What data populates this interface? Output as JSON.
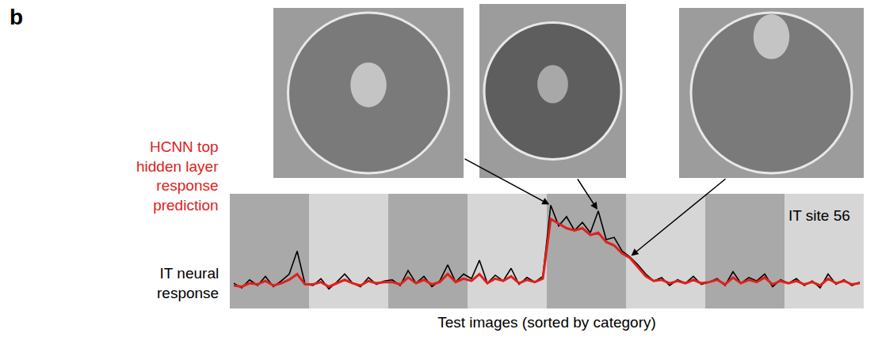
{
  "chart_data": {
    "type": "line",
    "panel": "b",
    "xlabel": "Test images (sorted by category)",
    "annotations": [
      "IT site 56"
    ],
    "tick_labels": false,
    "grid": false,
    "x": [
      0,
      1,
      2,
      3,
      4,
      5,
      6,
      7,
      8,
      9,
      10,
      11,
      12,
      13,
      14,
      15,
      16,
      17,
      18,
      19,
      20,
      21,
      22,
      23,
      24,
      25,
      26,
      27,
      28,
      29,
      30,
      31,
      32,
      33,
      34,
      35,
      36,
      37,
      38,
      39,
      40,
      41,
      42,
      43,
      44,
      45,
      46,
      47,
      48,
      49,
      50,
      51,
      52,
      53,
      54,
      55,
      56,
      57,
      58,
      59,
      60,
      61,
      62,
      63,
      64,
      65,
      66,
      67,
      68,
      69,
      70,
      71,
      72,
      73,
      74,
      75,
      76,
      77,
      78,
      79
    ],
    "xlim": [
      -0.5,
      79.5
    ],
    "ylim": [
      0,
      1
    ],
    "category_bounds": [
      -0.5,
      9.5,
      19.5,
      29.5,
      39.5,
      49.5,
      59.5,
      69.5,
      79.5
    ],
    "arrow_targets": [
      40,
      46,
      50
    ],
    "series": [
      {
        "name": "IT neural response",
        "color": "#000000",
        "values": [
          0.22,
          0.18,
          0.25,
          0.2,
          0.28,
          0.19,
          0.24,
          0.3,
          0.5,
          0.21,
          0.2,
          0.26,
          0.17,
          0.23,
          0.3,
          0.22,
          0.19,
          0.27,
          0.21,
          0.24,
          0.25,
          0.2,
          0.33,
          0.22,
          0.28,
          0.19,
          0.24,
          0.38,
          0.23,
          0.3,
          0.26,
          0.42,
          0.22,
          0.29,
          0.24,
          0.35,
          0.21,
          0.27,
          0.23,
          0.28,
          0.9,
          0.72,
          0.8,
          0.68,
          0.75,
          0.66,
          0.85,
          0.6,
          0.62,
          0.5,
          0.45,
          0.38,
          0.3,
          0.24,
          0.27,
          0.2,
          0.25,
          0.22,
          0.28,
          0.21,
          0.23,
          0.26,
          0.2,
          0.32,
          0.22,
          0.27,
          0.24,
          0.3,
          0.19,
          0.25,
          0.22,
          0.26,
          0.2,
          0.24,
          0.18,
          0.3,
          0.21,
          0.25,
          0.2,
          0.23
        ]
      },
      {
        "name": "HCNN top hidden layer response prediction",
        "color": "#e0201b",
        "values": [
          0.2,
          0.19,
          0.22,
          0.21,
          0.24,
          0.2,
          0.22,
          0.25,
          0.3,
          0.21,
          0.21,
          0.23,
          0.19,
          0.22,
          0.25,
          0.22,
          0.2,
          0.24,
          0.22,
          0.23,
          0.23,
          0.21,
          0.27,
          0.22,
          0.25,
          0.21,
          0.23,
          0.3,
          0.23,
          0.26,
          0.24,
          0.3,
          0.22,
          0.26,
          0.24,
          0.28,
          0.22,
          0.25,
          0.23,
          0.26,
          0.78,
          0.74,
          0.7,
          0.68,
          0.7,
          0.64,
          0.66,
          0.58,
          0.55,
          0.48,
          0.44,
          0.36,
          0.28,
          0.24,
          0.25,
          0.22,
          0.24,
          0.22,
          0.25,
          0.22,
          0.23,
          0.25,
          0.21,
          0.27,
          0.22,
          0.25,
          0.23,
          0.27,
          0.21,
          0.24,
          0.22,
          0.24,
          0.21,
          0.23,
          0.2,
          0.26,
          0.22,
          0.24,
          0.21,
          0.22
        ]
      }
    ]
  }
}
